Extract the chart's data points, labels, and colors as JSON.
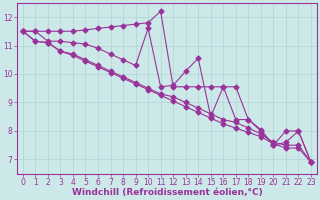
{
  "background_color": "#cde8e8",
  "line_color": "#993399",
  "marker": "D",
  "markersize": 2.5,
  "linewidth": 0.8,
  "xlabel": "Windchill (Refroidissement éolien,°C)",
  "xlabel_color": "#993399",
  "xlabel_fontsize": 6.5,
  "tick_color": "#993399",
  "tick_fontsize": 5.5,
  "xlim": [
    -0.5,
    23.5
  ],
  "ylim": [
    6.5,
    12.5
  ],
  "yticks": [
    7,
    8,
    9,
    10,
    11,
    12
  ],
  "xticks": [
    0,
    1,
    2,
    3,
    4,
    5,
    6,
    7,
    8,
    9,
    10,
    11,
    12,
    13,
    14,
    15,
    16,
    17,
    18,
    19,
    20,
    21,
    22,
    23
  ],
  "grid_color": "#b0d4d4",
  "series": [
    [
      11.5,
      11.5,
      11.5,
      11.5,
      11.5,
      11.55,
      11.6,
      11.65,
      11.7,
      11.75,
      11.8,
      12.2,
      9.55,
      9.55,
      9.55,
      9.55,
      9.55,
      9.55,
      8.4,
      8.0,
      7.5,
      7.6,
      8.0,
      6.9
    ],
    [
      11.5,
      11.5,
      11.15,
      11.15,
      11.1,
      11.05,
      10.9,
      10.7,
      10.5,
      10.3,
      11.6,
      9.55,
      9.6,
      10.1,
      10.55,
      8.5,
      9.55,
      8.4,
      8.4,
      8.05,
      7.5,
      8.0,
      8.0,
      6.9
    ],
    [
      11.5,
      11.15,
      11.1,
      10.8,
      10.7,
      10.5,
      10.3,
      10.1,
      9.9,
      9.7,
      9.5,
      9.3,
      9.2,
      9.0,
      8.8,
      8.6,
      8.4,
      8.3,
      8.1,
      7.9,
      7.6,
      7.5,
      7.5,
      6.9
    ],
    [
      11.5,
      11.15,
      11.1,
      10.8,
      10.65,
      10.45,
      10.25,
      10.05,
      9.85,
      9.65,
      9.45,
      9.25,
      9.05,
      8.85,
      8.65,
      8.45,
      8.25,
      8.1,
      7.95,
      7.8,
      7.55,
      7.4,
      7.4,
      6.9
    ]
  ]
}
